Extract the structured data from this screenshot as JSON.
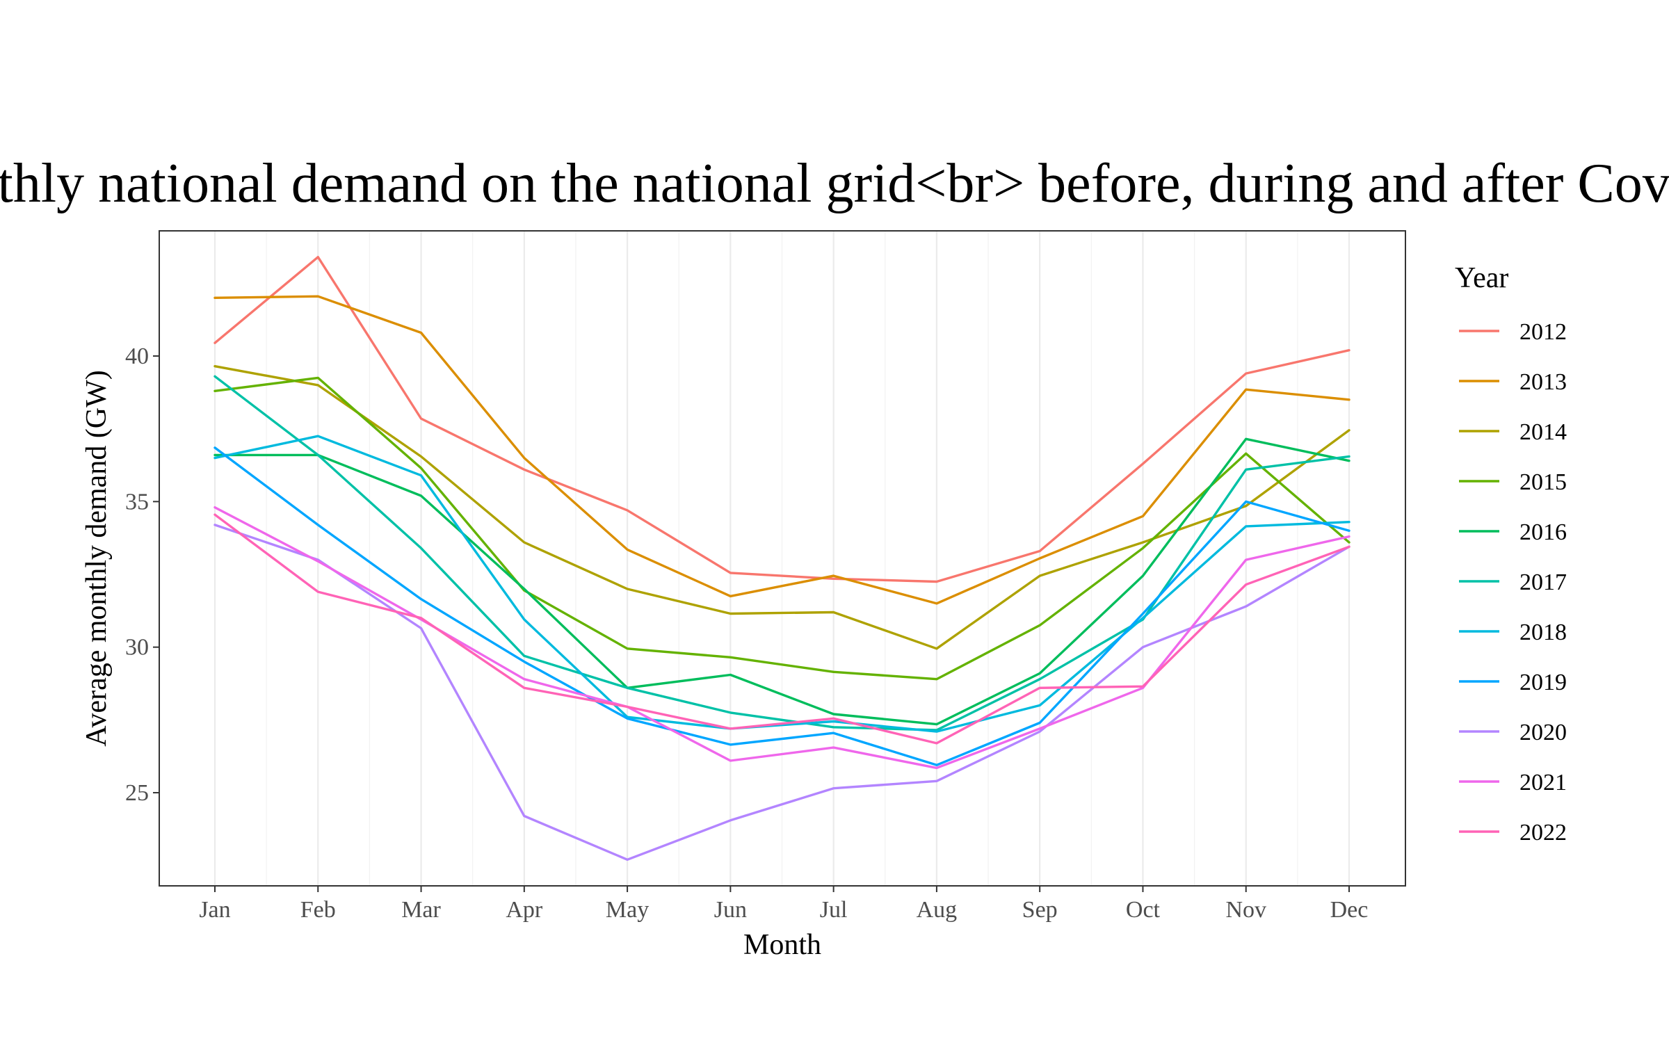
{
  "chart_data": {
    "type": "line",
    "title": "Average monthly national demand on the national grid<br> before, during and after Covid lockdowns",
    "xlabel": "Month",
    "ylabel": "Average monthly demand (GW)",
    "categories": [
      "Jan",
      "Feb",
      "Mar",
      "Apr",
      "May",
      "Jun",
      "Jul",
      "Aug",
      "Sep",
      "Oct",
      "Nov",
      "Dec"
    ],
    "ylim": [
      21.8,
      44.3
    ],
    "yticks": [
      25,
      30,
      35,
      40
    ],
    "grid": true,
    "legend": {
      "title": "Year",
      "position": "right"
    },
    "series": [
      {
        "name": "2012",
        "color": "#F8766D",
        "values": [
          40.45,
          43.4,
          37.85,
          36.1,
          34.7,
          32.55,
          32.35,
          32.25,
          33.3,
          36.3,
          39.4,
          40.2
        ]
      },
      {
        "name": "2013",
        "color": "#DB8E00",
        "values": [
          42.0,
          42.05,
          40.8,
          36.5,
          33.35,
          31.75,
          32.45,
          31.5,
          33.05,
          34.5,
          38.85,
          38.5
        ]
      },
      {
        "name": "2014",
        "color": "#AEA200",
        "values": [
          39.65,
          39.0,
          36.55,
          33.6,
          32.0,
          31.15,
          31.2,
          29.95,
          32.45,
          33.6,
          34.85,
          37.45
        ]
      },
      {
        "name": "2015",
        "color": "#64B200",
        "values": [
          38.8,
          39.25,
          36.15,
          31.95,
          29.95,
          29.65,
          29.15,
          28.9,
          30.75,
          33.4,
          36.65,
          33.6
        ]
      },
      {
        "name": "2016",
        "color": "#00BD5C",
        "values": [
          36.6,
          36.6,
          35.2,
          32.0,
          28.6,
          29.05,
          27.7,
          27.35,
          29.1,
          32.45,
          37.15,
          36.4
        ]
      },
      {
        "name": "2017",
        "color": "#00C1A7",
        "values": [
          39.3,
          36.6,
          33.4,
          29.7,
          28.6,
          27.75,
          27.25,
          27.15,
          28.9,
          30.95,
          36.1,
          36.55
        ]
      },
      {
        "name": "2018",
        "color": "#00BADE",
        "values": [
          36.5,
          37.25,
          35.9,
          30.95,
          27.6,
          27.2,
          27.45,
          27.1,
          28.0,
          31.0,
          34.15,
          34.3
        ]
      },
      {
        "name": "2019",
        "color": "#00A6FF",
        "values": [
          36.85,
          34.2,
          31.65,
          29.5,
          27.55,
          26.65,
          27.05,
          25.95,
          27.4,
          31.15,
          35.0,
          34.0
        ]
      },
      {
        "name": "2020",
        "color": "#B385FF",
        "values": [
          34.2,
          33.0,
          30.65,
          24.2,
          22.7,
          24.05,
          25.15,
          25.4,
          27.1,
          30.0,
          31.4,
          33.45
        ]
      },
      {
        "name": "2021",
        "color": "#EF67EB",
        "values": [
          34.8,
          32.95,
          30.95,
          28.9,
          27.95,
          26.1,
          26.55,
          25.85,
          27.2,
          28.6,
          33.0,
          33.8
        ]
      },
      {
        "name": "2022",
        "color": "#FF63B6",
        "values": [
          34.55,
          31.9,
          31.0,
          28.6,
          27.95,
          27.2,
          27.55,
          26.7,
          28.6,
          28.65,
          32.15,
          33.45
        ]
      }
    ]
  }
}
